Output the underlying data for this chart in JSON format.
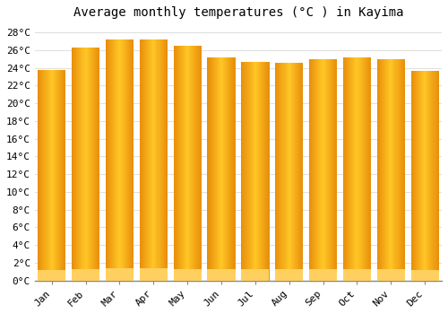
{
  "title": "Average monthly temperatures (°C ) in Kayima",
  "months": [
    "Jan",
    "Feb",
    "Mar",
    "Apr",
    "May",
    "Jun",
    "Jul",
    "Aug",
    "Sep",
    "Oct",
    "Nov",
    "Dec"
  ],
  "values": [
    23.8,
    26.3,
    27.2,
    27.2,
    26.5,
    25.2,
    24.7,
    24.6,
    25.0,
    25.2,
    25.0,
    23.7
  ],
  "bar_color_edge": "#E8900A",
  "bar_color_center": "#FFC826",
  "bar_color_bottom": "#F5A800",
  "background_color": "#FFFFFF",
  "grid_color": "#E0E0E0",
  "ylim": [
    0,
    29
  ],
  "ytick_step": 2,
  "title_fontsize": 10,
  "tick_fontsize": 8,
  "font_family": "monospace"
}
